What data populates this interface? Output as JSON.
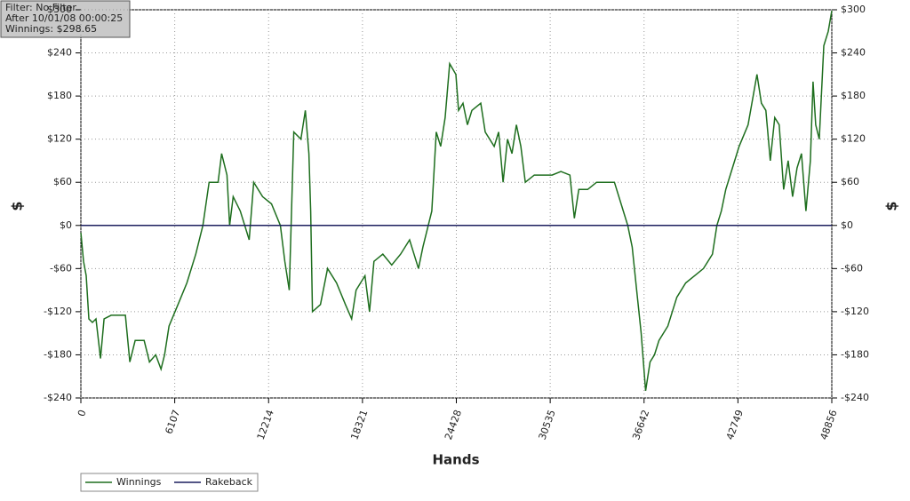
{
  "chart_data": {
    "type": "line",
    "annotations": [
      "Filter: No Filter",
      "After 10/01/08 00:00:25",
      "Winnings: $298.65"
    ],
    "x_label": "Hands",
    "y_label": "$",
    "y2_label": "$",
    "xlim": [
      0,
      48856
    ],
    "xticks": [
      0,
      6107,
      12214,
      18321,
      24428,
      30535,
      36642,
      42749,
      48856
    ],
    "ylim": [
      -240,
      300
    ],
    "yticks": [
      {
        "value": -240,
        "label": "-$240"
      },
      {
        "value": -180,
        "label": "-$180"
      },
      {
        "value": -120,
        "label": "-$120"
      },
      {
        "value": -60,
        "label": "-$60"
      },
      {
        "value": 0,
        "label": "$0"
      },
      {
        "value": 60,
        "label": "$60"
      },
      {
        "value": 120,
        "label": "$120"
      },
      {
        "value": 180,
        "label": "$180"
      },
      {
        "value": 240,
        "label": "$240"
      },
      {
        "value": 300,
        "label": "$300"
      }
    ],
    "grid": true,
    "series": [
      {
        "name": "Winnings",
        "color": "#1e6e1e",
        "x": [
          0,
          174,
          348,
          522,
          753,
          985,
          1275,
          1507,
          1970,
          2550,
          2898,
          3188,
          3535,
          4115,
          4463,
          4868,
          5216,
          5448,
          5737,
          6317,
          6897,
          7476,
          7940,
          8345,
          8925,
          9157,
          9505,
          9678,
          9910,
          10373,
          10953,
          11243,
          11822,
          12402,
          12981,
          13271,
          13561,
          13851,
          14314,
          14604,
          14836,
          14952,
          15068,
          15589,
          16053,
          16632,
          17212,
          17618,
          17907,
          18197,
          18487,
          18777,
          19066,
          19646,
          20225,
          20805,
          21384,
          21964,
          22254,
          22833,
          23123,
          23412,
          23702,
          23992,
          24398,
          24571,
          24861,
          25151,
          25441,
          26020,
          26309,
          26889,
          27179,
          27469,
          27758,
          28048,
          28338,
          28627,
          28917,
          29497,
          30076,
          30656,
          31236,
          31815,
          32105,
          32395,
          32974,
          33554,
          34134,
          34713,
          35003,
          35293,
          35583,
          35872,
          36162,
          36452,
          36742,
          37031,
          37321,
          37611,
          38191,
          38770,
          39350,
          39930,
          40509,
          41089,
          41379,
          41668,
          41958,
          42248,
          42828,
          43407,
          43987,
          44277,
          44566,
          44856,
          45146,
          45436,
          45725,
          46015,
          46305,
          46595,
          46884,
          47174,
          47464,
          47638,
          47812,
          48043,
          48333,
          48623,
          48856
        ],
        "values": [
          -10,
          -50,
          -70,
          -130,
          -135,
          -130,
          -185,
          -130,
          -125,
          -125,
          -125,
          -190,
          -160,
          -160,
          -190,
          -180,
          -200,
          -180,
          -140,
          -110,
          -80,
          -40,
          0,
          60,
          60,
          100,
          70,
          0,
          40,
          20,
          -20,
          60,
          40,
          30,
          0,
          -50,
          -90,
          130,
          120,
          160,
          100,
          20,
          -120,
          -110,
          -60,
          -80,
          -110,
          -130,
          -90,
          -80,
          -70,
          -120,
          -50,
          -40,
          -55,
          -40,
          -20,
          -60,
          -30,
          20,
          130,
          110,
          150,
          225,
          210,
          160,
          170,
          140,
          160,
          170,
          130,
          110,
          130,
          60,
          120,
          100,
          140,
          110,
          60,
          70,
          70,
          70,
          75,
          70,
          10,
          50,
          50,
          60,
          60,
          60,
          40,
          20,
          0,
          -30,
          -90,
          -150,
          -230,
          -190,
          -180,
          -160,
          -140,
          -100,
          -80,
          -70,
          -60,
          -40,
          0,
          20,
          50,
          70,
          110,
          140,
          210,
          170,
          160,
          90,
          150,
          140,
          50,
          90,
          40,
          80,
          100,
          20,
          90,
          200,
          140,
          120,
          250,
          270,
          298.65
        ]
      },
      {
        "name": "Rakeback",
        "color": "#1c1f5e",
        "x": [
          0,
          48856
        ],
        "values": [
          0,
          0
        ]
      }
    ]
  }
}
